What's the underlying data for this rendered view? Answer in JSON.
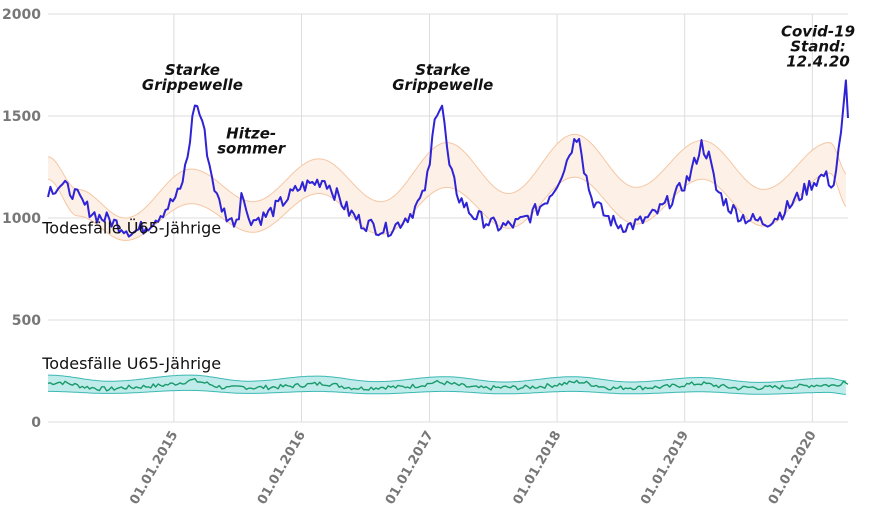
{
  "chart_data": {
    "type": "line",
    "x_type": "date",
    "xlim": [
      "2014-01-06",
      "2020-04-12"
    ],
    "ylim": [
      0,
      2000
    ],
    "yticks": [
      "0",
      "500",
      "1000",
      "1500",
      "2000"
    ],
    "xticks": [
      {
        "date": "2015-01-01",
        "label": "01.01.2015"
      },
      {
        "date": "2016-01-01",
        "label": "01.01.2016"
      },
      {
        "date": "2017-01-01",
        "label": "01.01.2017"
      },
      {
        "date": "2018-01-01",
        "label": "01.01.2018"
      },
      {
        "date": "2019-01-01",
        "label": "01.01.2019"
      },
      {
        "date": "2020-01-01",
        "label": "01.01.2020"
      }
    ],
    "grid": true,
    "colors": {
      "u65_line": "#1a9a6a",
      "u65_band_fill": "#bfeceb",
      "u65_band_edge": "#3bb8b3",
      "o65_line": "#2f23d6",
      "o65_band_fill": "#fdf1e7",
      "o65_band_edge": "#f6c6a3",
      "grid": "#dddddd",
      "tick": "#777777"
    },
    "series": [
      {
        "name": "Todesfälle U65-Jährige",
        "points": [
          [
            "2014-01-06",
            190
          ],
          [
            "2014-02-10",
            195
          ],
          [
            "2014-03-17",
            185
          ],
          [
            "2014-04-21",
            172
          ],
          [
            "2014-05-26",
            165
          ],
          [
            "2014-06-30",
            160
          ],
          [
            "2014-08-04",
            168
          ],
          [
            "2014-09-08",
            170
          ],
          [
            "2014-10-13",
            175
          ],
          [
            "2014-11-17",
            178
          ],
          [
            "2014-12-22",
            185
          ],
          [
            "2015-01-26",
            195
          ],
          [
            "2015-02-23",
            205
          ],
          [
            "2015-03-30",
            192
          ],
          [
            "2015-05-04",
            175
          ],
          [
            "2015-06-08",
            165
          ],
          [
            "2015-07-13",
            172
          ],
          [
            "2015-08-17",
            168
          ],
          [
            "2015-09-21",
            170
          ],
          [
            "2015-10-26",
            172
          ],
          [
            "2015-11-30",
            176
          ],
          [
            "2015-12-28",
            180
          ],
          [
            "2016-02-01",
            185
          ],
          [
            "2016-03-07",
            190
          ],
          [
            "2016-04-11",
            180
          ],
          [
            "2016-05-16",
            170
          ],
          [
            "2016-06-20",
            165
          ],
          [
            "2016-07-25",
            168
          ],
          [
            "2016-08-29",
            172
          ],
          [
            "2016-10-03",
            170
          ],
          [
            "2016-11-07",
            175
          ],
          [
            "2016-12-12",
            182
          ],
          [
            "2017-01-16",
            195
          ],
          [
            "2017-02-20",
            190
          ],
          [
            "2017-03-27",
            180
          ],
          [
            "2017-05-01",
            170
          ],
          [
            "2017-06-05",
            165
          ],
          [
            "2017-07-10",
            168
          ],
          [
            "2017-08-14",
            170
          ],
          [
            "2017-09-18",
            168
          ],
          [
            "2017-10-23",
            172
          ],
          [
            "2017-11-27",
            176
          ],
          [
            "2017-12-25",
            182
          ],
          [
            "2018-01-29",
            190
          ],
          [
            "2018-03-05",
            198
          ],
          [
            "2018-04-09",
            185
          ],
          [
            "2018-05-14",
            172
          ],
          [
            "2018-06-18",
            165
          ],
          [
            "2018-07-23",
            170
          ],
          [
            "2018-08-27",
            168
          ],
          [
            "2018-10-01",
            170
          ],
          [
            "2018-11-05",
            172
          ],
          [
            "2018-12-10",
            178
          ],
          [
            "2019-01-14",
            185
          ],
          [
            "2019-02-18",
            190
          ],
          [
            "2019-03-25",
            180
          ],
          [
            "2019-04-29",
            172
          ],
          [
            "2019-06-03",
            166
          ],
          [
            "2019-07-08",
            170
          ],
          [
            "2019-08-12",
            168
          ],
          [
            "2019-09-16",
            170
          ],
          [
            "2019-10-21",
            172
          ],
          [
            "2019-11-25",
            175
          ],
          [
            "2019-12-30",
            180
          ],
          [
            "2020-02-03",
            182
          ],
          [
            "2020-03-09",
            178
          ],
          [
            "2020-03-30",
            200
          ],
          [
            "2020-04-12",
            185
          ]
        ]
      },
      {
        "name": "Todesfälle Ü65-Jährige",
        "points": [
          [
            "2014-01-06",
            1140
          ],
          [
            "2014-02-10",
            1160
          ],
          [
            "2014-03-17",
            1130
          ],
          [
            "2014-04-21",
            1060
          ],
          [
            "2014-05-26",
            1010
          ],
          [
            "2014-06-30",
            990
          ],
          [
            "2014-08-04",
            960
          ],
          [
            "2014-09-08",
            930
          ],
          [
            "2014-10-13",
            960
          ],
          [
            "2014-11-17",
            1010
          ],
          [
            "2014-12-22",
            1070
          ],
          [
            "2015-01-19",
            1130
          ],
          [
            "2015-02-09",
            1300
          ],
          [
            "2015-03-02",
            1570
          ],
          [
            "2015-03-23",
            1480
          ],
          [
            "2015-04-13",
            1260
          ],
          [
            "2015-05-04",
            1100
          ],
          [
            "2015-05-25",
            1030
          ],
          [
            "2015-06-15",
            980
          ],
          [
            "2015-07-06",
            1010
          ],
          [
            "2015-07-13",
            1160
          ],
          [
            "2015-07-27",
            1020
          ],
          [
            "2015-08-17",
            990
          ],
          [
            "2015-09-21",
            1010
          ],
          [
            "2015-10-26",
            1060
          ],
          [
            "2015-11-30",
            1110
          ],
          [
            "2015-12-28",
            1150
          ],
          [
            "2016-02-01",
            1170
          ],
          [
            "2016-03-07",
            1190
          ],
          [
            "2016-04-11",
            1110
          ],
          [
            "2016-05-16",
            1030
          ],
          [
            "2016-06-20",
            980
          ],
          [
            "2016-07-25",
            960
          ],
          [
            "2016-08-29",
            940
          ],
          [
            "2016-10-03",
            970
          ],
          [
            "2016-11-07",
            1020
          ],
          [
            "2016-12-12",
            1100
          ],
          [
            "2017-01-02",
            1250
          ],
          [
            "2017-01-16",
            1520
          ],
          [
            "2017-02-06",
            1550
          ],
          [
            "2017-02-27",
            1240
          ],
          [
            "2017-03-27",
            1100
          ],
          [
            "2017-05-01",
            1020
          ],
          [
            "2017-06-05",
            990
          ],
          [
            "2017-07-10",
            960
          ],
          [
            "2017-08-14",
            960
          ],
          [
            "2017-09-18",
            980
          ],
          [
            "2017-10-23",
            1020
          ],
          [
            "2017-11-27",
            1080
          ],
          [
            "2017-12-25",
            1150
          ],
          [
            "2018-01-22",
            1250
          ],
          [
            "2018-02-12",
            1350
          ],
          [
            "2018-03-05",
            1420
          ],
          [
            "2018-03-19",
            1250
          ],
          [
            "2018-04-09",
            1100
          ],
          [
            "2018-05-14",
            1020
          ],
          [
            "2018-06-18",
            970
          ],
          [
            "2018-07-23",
            960
          ],
          [
            "2018-08-27",
            980
          ],
          [
            "2018-10-01",
            1010
          ],
          [
            "2018-11-05",
            1060
          ],
          [
            "2018-12-10",
            1120
          ],
          [
            "2019-01-14",
            1200
          ],
          [
            "2019-02-18",
            1360
          ],
          [
            "2019-03-11",
            1300
          ],
          [
            "2019-04-01",
            1140
          ],
          [
            "2019-05-06",
            1060
          ],
          [
            "2019-06-10",
            1010
          ],
          [
            "2019-07-15",
            990
          ],
          [
            "2019-08-19",
            980
          ],
          [
            "2019-09-23",
            1010
          ],
          [
            "2019-10-28",
            1060
          ],
          [
            "2019-12-02",
            1120
          ],
          [
            "2019-12-30",
            1170
          ],
          [
            "2020-02-03",
            1210
          ],
          [
            "2020-03-02",
            1160
          ],
          [
            "2020-03-23",
            1400
          ],
          [
            "2020-04-06",
            1660
          ],
          [
            "2020-04-12",
            1490
          ]
        ]
      }
    ],
    "bands": [
      {
        "for": "Todesfälle U65-Jährige",
        "lower": [
          [
            "2014-01-06",
            150
          ],
          [
            "2014-07-01",
            140
          ],
          [
            "2015-02-15",
            155
          ],
          [
            "2015-08-01",
            140
          ],
          [
            "2016-02-15",
            150
          ],
          [
            "2016-08-01",
            138
          ],
          [
            "2017-02-15",
            150
          ],
          [
            "2017-08-01",
            138
          ],
          [
            "2018-02-15",
            150
          ],
          [
            "2018-08-01",
            138
          ],
          [
            "2019-02-15",
            148
          ],
          [
            "2019-08-01",
            136
          ],
          [
            "2020-02-15",
            145
          ],
          [
            "2020-04-12",
            135
          ]
        ],
        "upper": [
          [
            "2014-01-06",
            230
          ],
          [
            "2014-07-01",
            200
          ],
          [
            "2015-02-15",
            230
          ],
          [
            "2015-08-01",
            200
          ],
          [
            "2016-02-15",
            225
          ],
          [
            "2016-08-01",
            198
          ],
          [
            "2017-02-15",
            222
          ],
          [
            "2017-08-01",
            196
          ],
          [
            "2018-02-15",
            222
          ],
          [
            "2018-08-01",
            196
          ],
          [
            "2019-02-15",
            218
          ],
          [
            "2019-08-01",
            194
          ],
          [
            "2020-02-15",
            215
          ],
          [
            "2020-04-12",
            200
          ]
        ]
      },
      {
        "for": "Todesfälle Ü65-Jährige",
        "lower": [
          [
            "2014-01-06",
            1190
          ],
          [
            "2014-04-01",
            1010
          ],
          [
            "2014-08-15",
            890
          ],
          [
            "2015-02-20",
            1070
          ],
          [
            "2015-08-15",
            930
          ],
          [
            "2016-02-20",
            1120
          ],
          [
            "2016-08-15",
            920
          ],
          [
            "2017-02-20",
            1150
          ],
          [
            "2017-08-15",
            950
          ],
          [
            "2018-02-20",
            1200
          ],
          [
            "2018-08-15",
            970
          ],
          [
            "2019-02-20",
            1190
          ],
          [
            "2019-08-15",
            960
          ],
          [
            "2020-02-20",
            1220
          ],
          [
            "2020-04-12",
            1050
          ]
        ],
        "upper": [
          [
            "2014-01-06",
            1300
          ],
          [
            "2014-04-01",
            1140
          ],
          [
            "2014-08-15",
            1000
          ],
          [
            "2015-02-20",
            1240
          ],
          [
            "2015-08-15",
            1080
          ],
          [
            "2016-02-20",
            1290
          ],
          [
            "2016-08-15",
            1080
          ],
          [
            "2017-02-20",
            1370
          ],
          [
            "2017-08-15",
            1120
          ],
          [
            "2018-02-20",
            1410
          ],
          [
            "2018-08-15",
            1150
          ],
          [
            "2019-02-20",
            1380
          ],
          [
            "2019-08-15",
            1140
          ],
          [
            "2020-02-20",
            1370
          ],
          [
            "2020-04-12",
            1210
          ]
        ]
      }
    ],
    "series_labels": [
      {
        "text": "Todesfälle Ü65-Jährige",
        "date": "2014-01-01",
        "y": 925
      },
      {
        "text": "Todesfälle U65-Jährige",
        "date": "2014-01-01",
        "y": 260
      }
    ],
    "annotations": [
      {
        "lines": [
          "Starke",
          "Grippewelle"
        ],
        "date": "2015-02-23",
        "y": 1700
      },
      {
        "lines": [
          "Hitze-",
          "sommer"
        ],
        "date": "2015-08-10",
        "y": 1390
      },
      {
        "lines": [
          "Starke",
          "Grippewelle"
        ],
        "date": "2017-02-08",
        "y": 1700
      },
      {
        "lines": [
          "Covid-19",
          "Stand:",
          "12.4.20"
        ],
        "date": "2020-04-01",
        "y": 1890
      }
    ]
  }
}
